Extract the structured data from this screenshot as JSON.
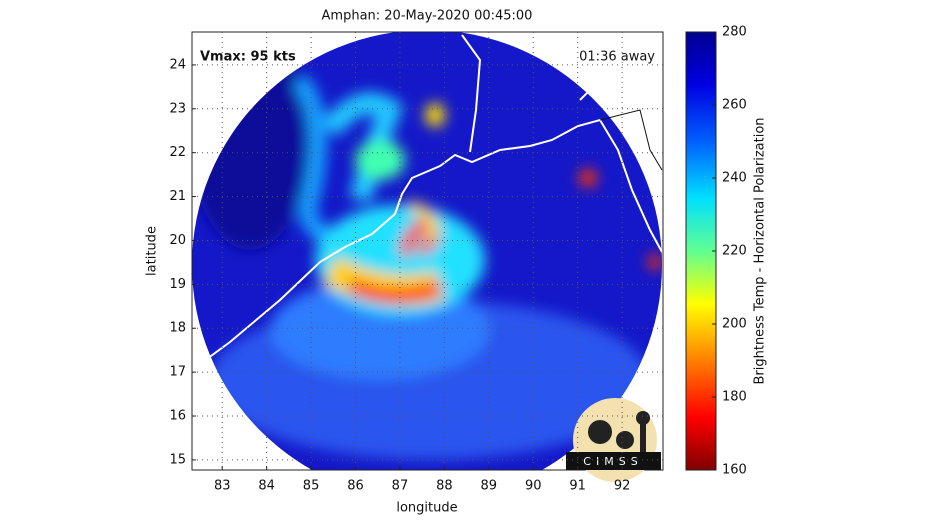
{
  "map": {
    "title": "Amphan: 20-May-2020 00:45:00",
    "annotations": {
      "vmax": "Vmax: 95 kts",
      "away": "01:36 away"
    },
    "x_axis": {
      "label": "longitude",
      "lim": [
        82.32,
        92.92
      ],
      "ticks": [
        83,
        84,
        85,
        86,
        87,
        88,
        89,
        90,
        91,
        92
      ]
    },
    "y_axis": {
      "label": "latitude",
      "lim": [
        14.77,
        24.75
      ],
      "ticks": [
        15,
        16,
        17,
        18,
        19,
        20,
        21,
        22,
        23,
        24
      ]
    },
    "colorbar": {
      "label": "Brightness Temp - Horizontal Polarization",
      "lim": [
        160,
        280
      ],
      "ticks": [
        160,
        180,
        200,
        220,
        240,
        260,
        280
      ]
    },
    "logo": "CIMSS"
  }
}
